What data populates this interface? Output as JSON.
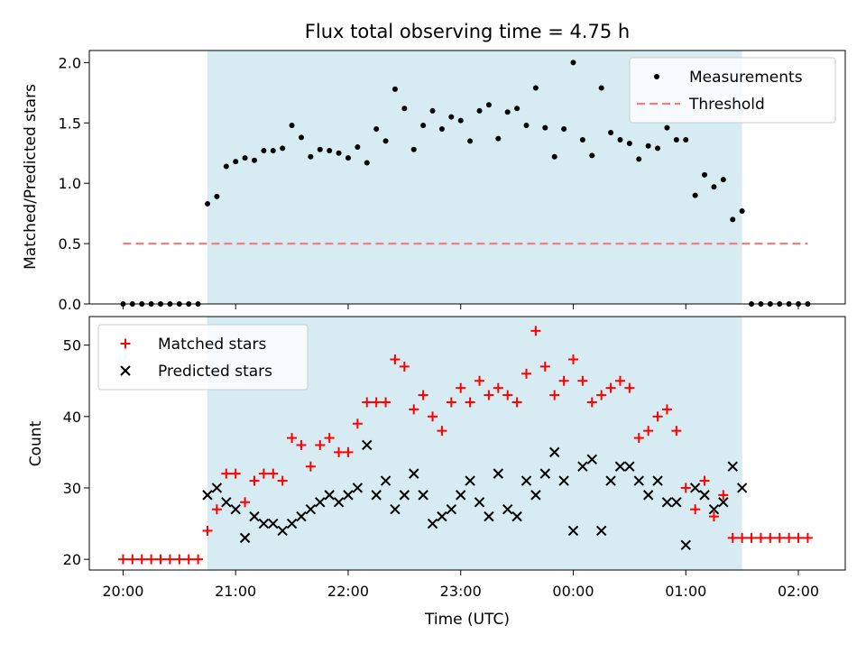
{
  "chart_data": {
    "title": "Flux total observing time = 4.75 h",
    "xlabel": "Time (UTC)",
    "x_ticks": [
      "20:00",
      "21:00",
      "22:00",
      "23:00",
      "00:00",
      "01:00",
      "02:00"
    ],
    "x_tick_hours": [
      20,
      21,
      22,
      23,
      24,
      25,
      26
    ],
    "xlim": [
      "19:42",
      "02:25"
    ],
    "observing_window": [
      "20:45",
      "01:30"
    ],
    "window_color": "#add8e6",
    "top": {
      "type": "scatter",
      "ylabel": "Matched/Predicted stars",
      "ylim": [
        0,
        2.1
      ],
      "y_ticks": [
        "0.0",
        "0.5",
        "1.0",
        "1.5",
        "2.0"
      ],
      "legend": [
        "Measurements",
        "Threshold"
      ],
      "legend_position": "upper right",
      "threshold": {
        "value": 0.5,
        "from": "20:00",
        "to": "02:05",
        "color": "#f08080"
      },
      "measurements": [
        [
          "20:00",
          0
        ],
        [
          "20:05",
          0
        ],
        [
          "20:10",
          0
        ],
        [
          "20:15",
          0
        ],
        [
          "20:20",
          0
        ],
        [
          "20:25",
          0
        ],
        [
          "20:30",
          0
        ],
        [
          "20:35",
          0
        ],
        [
          "20:40",
          0
        ],
        [
          "20:45",
          0.83
        ],
        [
          "20:50",
          0.89
        ],
        [
          "20:55",
          1.14
        ],
        [
          "21:00",
          1.18
        ],
        [
          "21:05",
          1.21
        ],
        [
          "21:10",
          1.19
        ],
        [
          "21:15",
          1.27
        ],
        [
          "21:20",
          1.27
        ],
        [
          "21:25",
          1.29
        ],
        [
          "21:30",
          1.48
        ],
        [
          "21:35",
          1.38
        ],
        [
          "21:40",
          1.22
        ],
        [
          "21:45",
          1.28
        ],
        [
          "21:50",
          1.27
        ],
        [
          "21:55",
          1.25
        ],
        [
          "22:00",
          1.21
        ],
        [
          "22:05",
          1.3
        ],
        [
          "22:10",
          1.17
        ],
        [
          "22:15",
          1.45
        ],
        [
          "22:20",
          1.35
        ],
        [
          "22:25",
          1.78
        ],
        [
          "22:30",
          1.62
        ],
        [
          "22:35",
          1.28
        ],
        [
          "22:40",
          1.48
        ],
        [
          "22:45",
          1.6
        ],
        [
          "22:50",
          1.45
        ],
        [
          "22:55",
          1.55
        ],
        [
          "23:00",
          1.52
        ],
        [
          "23:05",
          1.35
        ],
        [
          "23:10",
          1.6
        ],
        [
          "23:15",
          1.65
        ],
        [
          "23:20",
          1.37
        ],
        [
          "23:25",
          1.59
        ],
        [
          "23:30",
          1.62
        ],
        [
          "23:35",
          1.48
        ],
        [
          "23:40",
          1.79
        ],
        [
          "23:45",
          1.46
        ],
        [
          "23:50",
          1.22
        ],
        [
          "23:55",
          1.45
        ],
        [
          "00:00",
          2.0
        ],
        [
          "00:05",
          1.36
        ],
        [
          "00:10",
          1.23
        ],
        [
          "00:15",
          1.79
        ],
        [
          "00:20",
          1.42
        ],
        [
          "00:25",
          1.36
        ],
        [
          "00:30",
          1.33
        ],
        [
          "00:35",
          1.2
        ],
        [
          "00:40",
          1.31
        ],
        [
          "00:45",
          1.29
        ],
        [
          "00:50",
          1.46
        ],
        [
          "00:55",
          1.36
        ],
        [
          "01:00",
          1.36
        ],
        [
          "01:05",
          0.9
        ],
        [
          "01:10",
          1.07
        ],
        [
          "01:15",
          0.97
        ],
        [
          "01:20",
          1.03
        ],
        [
          "01:25",
          0.7
        ],
        [
          "01:30",
          0.77
        ],
        [
          "01:35",
          0
        ],
        [
          "01:40",
          0
        ],
        [
          "01:45",
          0
        ],
        [
          "01:50",
          0
        ],
        [
          "01:55",
          0
        ],
        [
          "02:00",
          0
        ],
        [
          "02:05",
          0
        ]
      ]
    },
    "bottom": {
      "type": "scatter",
      "ylabel": "Count",
      "ylim": [
        18.5,
        54
      ],
      "y_ticks": [
        "20",
        "30",
        "40",
        "50"
      ],
      "legend": [
        "Matched stars",
        "Predicted stars"
      ],
      "legend_position": "upper left",
      "series": [
        {
          "name": "Matched stars",
          "marker": "+",
          "color": "#ff0000",
          "points": [
            [
              "20:00",
              20
            ],
            [
              "20:05",
              20
            ],
            [
              "20:10",
              20
            ],
            [
              "20:15",
              20
            ],
            [
              "20:20",
              20
            ],
            [
              "20:25",
              20
            ],
            [
              "20:30",
              20
            ],
            [
              "20:35",
              20
            ],
            [
              "20:40",
              20
            ],
            [
              "20:45",
              24
            ],
            [
              "20:50",
              27
            ],
            [
              "20:55",
              32
            ],
            [
              "21:00",
              32
            ],
            [
              "21:05",
              28
            ],
            [
              "21:10",
              31
            ],
            [
              "21:15",
              32
            ],
            [
              "21:20",
              32
            ],
            [
              "21:25",
              31
            ],
            [
              "21:30",
              37
            ],
            [
              "21:35",
              36
            ],
            [
              "21:40",
              33
            ],
            [
              "21:45",
              36
            ],
            [
              "21:50",
              37
            ],
            [
              "21:55",
              35
            ],
            [
              "22:00",
              35
            ],
            [
              "22:05",
              39
            ],
            [
              "22:10",
              42
            ],
            [
              "22:15",
              42
            ],
            [
              "22:20",
              42
            ],
            [
              "22:25",
              48
            ],
            [
              "22:30",
              47
            ],
            [
              "22:35",
              41
            ],
            [
              "22:40",
              43
            ],
            [
              "22:45",
              40
            ],
            [
              "22:50",
              38
            ],
            [
              "22:55",
              42
            ],
            [
              "23:00",
              44
            ],
            [
              "23:05",
              42
            ],
            [
              "23:10",
              45
            ],
            [
              "23:15",
              43
            ],
            [
              "23:20",
              44
            ],
            [
              "23:25",
              43
            ],
            [
              "23:30",
              42
            ],
            [
              "23:35",
              46
            ],
            [
              "23:40",
              52
            ],
            [
              "23:45",
              47
            ],
            [
              "23:50",
              43
            ],
            [
              "23:55",
              45
            ],
            [
              "00:00",
              48
            ],
            [
              "00:05",
              45
            ],
            [
              "00:10",
              42
            ],
            [
              "00:15",
              43
            ],
            [
              "00:20",
              44
            ],
            [
              "00:25",
              45
            ],
            [
              "00:30",
              44
            ],
            [
              "00:35",
              37
            ],
            [
              "00:40",
              38
            ],
            [
              "00:45",
              40
            ],
            [
              "00:50",
              41
            ],
            [
              "00:55",
              38
            ],
            [
              "01:00",
              30
            ],
            [
              "01:05",
              27
            ],
            [
              "01:10",
              31
            ],
            [
              "01:15",
              26
            ],
            [
              "01:20",
              29
            ],
            [
              "01:25",
              23
            ],
            [
              "01:30",
              23
            ],
            [
              "01:35",
              23
            ],
            [
              "01:40",
              23
            ],
            [
              "01:45",
              23
            ],
            [
              "01:50",
              23
            ],
            [
              "01:55",
              23
            ],
            [
              "02:00",
              23
            ],
            [
              "02:05",
              23
            ]
          ]
        },
        {
          "name": "Predicted stars",
          "marker": "x",
          "color": "#000000",
          "points": [
            [
              "20:45",
              29
            ],
            [
              "20:50",
              30
            ],
            [
              "20:55",
              28
            ],
            [
              "21:00",
              27
            ],
            [
              "21:05",
              23
            ],
            [
              "21:10",
              26
            ],
            [
              "21:15",
              25
            ],
            [
              "21:20",
              25
            ],
            [
              "21:25",
              24
            ],
            [
              "21:30",
              25
            ],
            [
              "21:35",
              26
            ],
            [
              "21:40",
              27
            ],
            [
              "21:45",
              28
            ],
            [
              "21:50",
              29
            ],
            [
              "21:55",
              28
            ],
            [
              "22:00",
              29
            ],
            [
              "22:05",
              30
            ],
            [
              "22:10",
              36
            ],
            [
              "22:15",
              29
            ],
            [
              "22:20",
              31
            ],
            [
              "22:25",
              27
            ],
            [
              "22:30",
              29
            ],
            [
              "22:35",
              32
            ],
            [
              "22:40",
              29
            ],
            [
              "22:45",
              25
            ],
            [
              "22:50",
              26
            ],
            [
              "22:55",
              27
            ],
            [
              "23:00",
              29
            ],
            [
              "23:05",
              31
            ],
            [
              "23:10",
              28
            ],
            [
              "23:15",
              26
            ],
            [
              "23:20",
              32
            ],
            [
              "23:25",
              27
            ],
            [
              "23:30",
              26
            ],
            [
              "23:35",
              31
            ],
            [
              "23:40",
              29
            ],
            [
              "23:45",
              32
            ],
            [
              "23:50",
              35
            ],
            [
              "23:55",
              31
            ],
            [
              "00:00",
              24
            ],
            [
              "00:05",
              33
            ],
            [
              "00:10",
              34
            ],
            [
              "00:15",
              24
            ],
            [
              "00:20",
              31
            ],
            [
              "00:25",
              33
            ],
            [
              "00:30",
              33
            ],
            [
              "00:35",
              31
            ],
            [
              "00:40",
              29
            ],
            [
              "00:45",
              31
            ],
            [
              "00:50",
              28
            ],
            [
              "00:55",
              28
            ],
            [
              "01:00",
              22
            ],
            [
              "01:05",
              30
            ],
            [
              "01:10",
              29
            ],
            [
              "01:15",
              27
            ],
            [
              "01:20",
              28
            ],
            [
              "01:25",
              33
            ],
            [
              "01:30",
              30
            ]
          ]
        }
      ]
    }
  }
}
